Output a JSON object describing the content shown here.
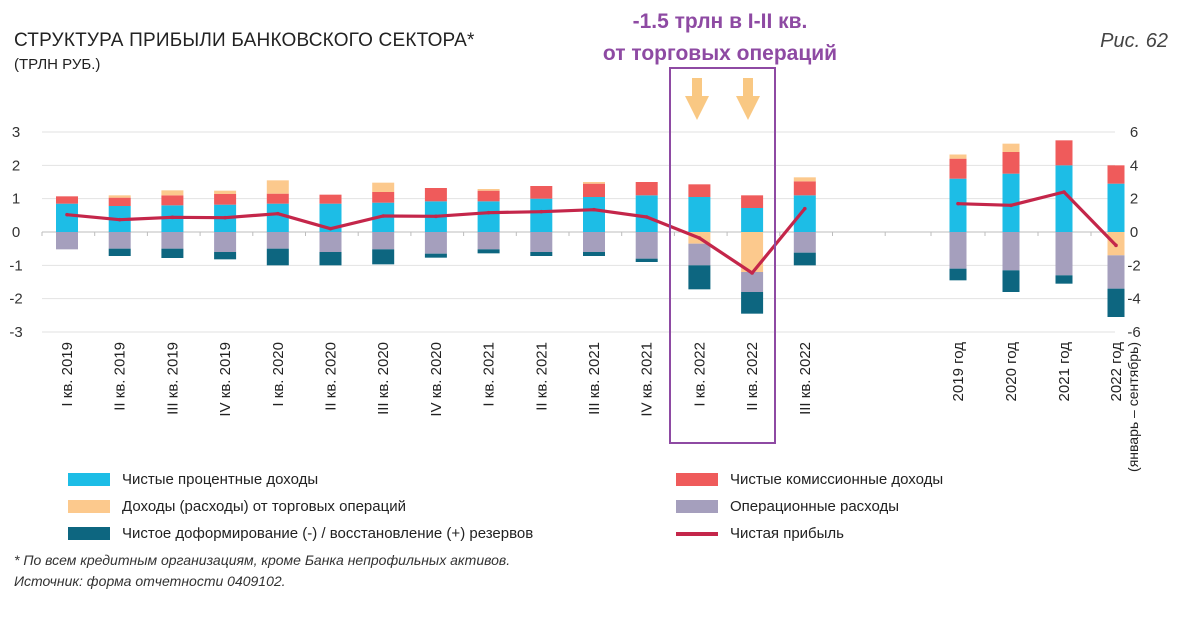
{
  "header": {
    "title": "СТРУКТУРА ПРИБЫЛИ БАНКОВСКОГО СЕКТОРА*",
    "subtitle": "(ТРЛН РУБ.)",
    "figure_ref": "Рис. 62"
  },
  "annotation": {
    "line1": "-1.5 трлн в I-II кв.",
    "line2": "от торговых операций"
  },
  "colors": {
    "nii": "#1dbde6",
    "trading": "#fcc98d",
    "provisions": "#0d6680",
    "fees": "#ef5b5b",
    "opex": "#a59fbd",
    "profit": "#c4264a",
    "annotation": "#8e4aa3",
    "arrow": "#f9c883"
  },
  "legend": [
    {
      "key": "nii",
      "label": "Чистые процентные доходы",
      "kind": "bar"
    },
    {
      "key": "trading",
      "label": "Доходы (расходы) от торговых операций",
      "kind": "bar"
    },
    {
      "key": "provisions",
      "label": "Чистое доформирование (-) / восстановление (+) резервов",
      "kind": "bar"
    },
    {
      "key": "fees",
      "label": "Чистые комиссионные доходы",
      "kind": "bar"
    },
    {
      "key": "opex",
      "label": "Операционные расходы",
      "kind": "bar"
    },
    {
      "key": "profit",
      "label": "Чистая прибыль",
      "kind": "line"
    }
  ],
  "footnotes": {
    "note": "* По всем кредитным организациям, кроме Банка непрофильных активов.",
    "source": "Источник: форма отчетности 0409102."
  },
  "chart_data": [
    {
      "type": "bar",
      "stacked": true,
      "categories": [
        "I кв. 2019",
        "II кв. 2019",
        "III кв. 2019",
        "IV кв. 2019",
        "I кв. 2020",
        "II кв. 2020",
        "III кв. 2020",
        "IV кв. 2020",
        "I кв. 2021",
        "II кв. 2021",
        "III кв. 2021",
        "IV кв. 2021",
        "I кв. 2022",
        "II кв. 2022",
        "III кв. 2022"
      ],
      "ylim": [
        -3,
        3
      ],
      "yticks": [
        -3,
        -2,
        -1,
        0,
        1,
        2,
        3
      ],
      "series": [
        {
          "key": "nii",
          "name": "Чистые процентные доходы",
          "values": [
            0.85,
            0.78,
            0.8,
            0.82,
            0.85,
            0.85,
            0.88,
            0.92,
            0.92,
            1.0,
            1.05,
            1.1,
            1.05,
            0.72,
            1.1
          ]
        },
        {
          "key": "fees",
          "name": "Чистые комиссионные доходы",
          "values": [
            0.22,
            0.25,
            0.3,
            0.32,
            0.3,
            0.27,
            0.32,
            0.4,
            0.32,
            0.38,
            0.4,
            0.4,
            0.38,
            0.38,
            0.42
          ]
        },
        {
          "key": "trading",
          "name": "Доходы (расходы) от торговых операций",
          "values": [
            0,
            0.07,
            0.15,
            0.1,
            0.4,
            0,
            0.28,
            0,
            0.05,
            0,
            0.05,
            0,
            -0.35,
            -1.2,
            0.12
          ]
        },
        {
          "key": "opex",
          "name": "Операционные расходы",
          "values": [
            -0.52,
            -0.5,
            -0.5,
            -0.6,
            -0.5,
            -0.6,
            -0.52,
            -0.65,
            -0.52,
            -0.6,
            -0.6,
            -0.8,
            -0.65,
            -0.6,
            -0.62
          ]
        },
        {
          "key": "provisions",
          "name": "Чистое доформирование (-) / восстановление (+) резервов",
          "values": [
            0,
            -0.22,
            -0.28,
            -0.22,
            -0.5,
            -0.4,
            -0.45,
            -0.12,
            -0.12,
            -0.12,
            -0.12,
            -0.1,
            -0.72,
            -0.65,
            -0.38
          ]
        }
      ],
      "line": {
        "key": "profit",
        "name": "Чистая прибыль",
        "values": [
          0.52,
          0.37,
          0.44,
          0.43,
          0.55,
          0.1,
          0.48,
          0.47,
          0.58,
          0.61,
          0.67,
          0.45,
          -0.18,
          -1.23,
          0.7
        ]
      },
      "highlight_categories": [
        "I кв. 2022",
        "II кв. 2022"
      ]
    },
    {
      "type": "bar",
      "stacked": true,
      "categories": [
        "2019 год",
        "2020 год",
        "2021 год",
        "2022 год (январь – сентябрь)"
      ],
      "ylim": [
        -6,
        6
      ],
      "yticks": [
        -6,
        -4,
        -2,
        0,
        2,
        4,
        6
      ],
      "series": [
        {
          "key": "nii",
          "name": "Чистые процентные доходы",
          "values": [
            3.2,
            3.5,
            4.0,
            2.9
          ]
        },
        {
          "key": "fees",
          "name": "Чистые комиссионные доходы",
          "values": [
            1.2,
            1.3,
            1.5,
            1.1
          ]
        },
        {
          "key": "trading",
          "name": "Доходы (расходы) от торговых операций",
          "values": [
            0.25,
            0.5,
            0,
            -1.4
          ]
        },
        {
          "key": "opex",
          "name": "Операционные расходы",
          "values": [
            -2.2,
            -2.3,
            -2.6,
            -2.0
          ]
        },
        {
          "key": "provisions",
          "name": "Чистое доформирование (-) / восстановление (+) резервов",
          "values": [
            -0.7,
            -1.3,
            -0.5,
            -1.7
          ]
        }
      ],
      "line": {
        "key": "profit",
        "name": "Чистая прибыль",
        "values": [
          1.7,
          1.6,
          2.4,
          -0.8
        ]
      }
    }
  ]
}
